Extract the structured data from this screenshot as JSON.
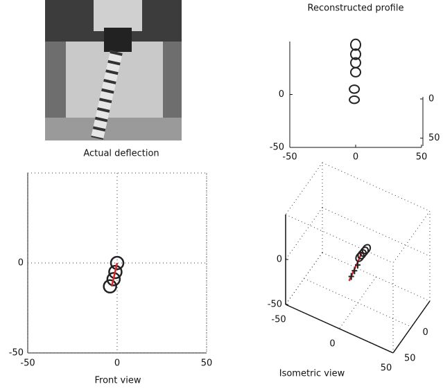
{
  "photo": {
    "caption": "Actual deflection"
  },
  "chart_data": [
    {
      "type": "profile",
      "title": "Reconstructed profile",
      "x": [
        0,
        0,
        0,
        0,
        -1,
        -1
      ],
      "y": [
        47,
        38,
        30,
        21,
        5,
        -5
      ],
      "xlim": [
        -50,
        50
      ],
      "ylim": [
        -50,
        50
      ],
      "xticks": [
        -50,
        0,
        50
      ],
      "yticks": [
        -50,
        0
      ],
      "y2lim": [
        0,
        60
      ],
      "y2ticks": [
        0,
        50
      ],
      "color": "#222222"
    },
    {
      "type": "front",
      "xlabel": "Front view",
      "x": [
        0,
        -1,
        -2,
        -4
      ],
      "y": [
        0,
        -5,
        -9,
        -13
      ],
      "line": {
        "x": [
          0,
          -3
        ],
        "y": [
          0,
          -13
        ],
        "color": "#d62728"
      },
      "xlim": [
        -50,
        50
      ],
      "ylim": [
        -50,
        50
      ],
      "xticks": [
        -50,
        0,
        50
      ],
      "yticks": [
        -50,
        0
      ],
      "grid": true,
      "color": "#222222"
    },
    {
      "type": "iso",
      "xlabel": "Isometric view",
      "rings": {
        "x": [
          2,
          4,
          6,
          8
        ],
        "y": [
          0,
          0,
          0,
          0
        ],
        "z": [
          2,
          6,
          10,
          14
        ]
      },
      "crosses": {
        "x": [
          -6,
          -3,
          0
        ],
        "y": [
          0,
          0,
          0
        ],
        "z": [
          -24,
          -16,
          -8
        ]
      },
      "line": {
        "x": [
          -8,
          4
        ],
        "y": [
          0,
          0
        ],
        "z": [
          -30,
          8
        ],
        "color": "#d62728"
      },
      "xlim": [
        -50,
        50
      ],
      "ylim": [
        -50,
        50
      ],
      "zlim": [
        -50,
        50
      ],
      "xticks": [
        -50,
        0,
        50
      ],
      "yticks": [
        0,
        50
      ],
      "zticks": [
        -50,
        0
      ],
      "color": "#222222"
    }
  ]
}
